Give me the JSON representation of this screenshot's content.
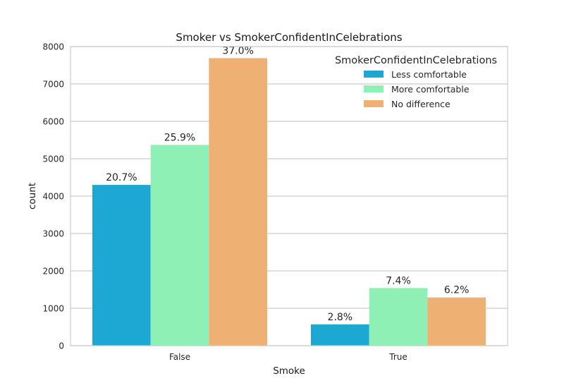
{
  "chart_data": {
    "type": "bar",
    "title": "Smoker vs SmokerConfidentInCelebrations",
    "xlabel": "Smoke",
    "ylabel": "count",
    "categories": [
      "False",
      "True"
    ],
    "ylim": [
      0,
      8000
    ],
    "yticks": [
      0,
      1000,
      2000,
      3000,
      4000,
      5000,
      6000,
      7000,
      8000
    ],
    "grid": true,
    "legend": {
      "title": "SmokerConfidentInCelebrations",
      "placement": "top-right"
    },
    "series": [
      {
        "name": "Less comfortable",
        "color": "#1da7d3",
        "values": [
          4300,
          570
        ],
        "labels": [
          "20.7%",
          "2.8%"
        ]
      },
      {
        "name": "More comfortable",
        "color": "#8ef0b4",
        "values": [
          5370,
          1540
        ],
        "labels": [
          "25.9%",
          "7.4%"
        ]
      },
      {
        "name": "No difference",
        "color": "#eeb173",
        "values": [
          7690,
          1290
        ],
        "labels": [
          "37.0%",
          "6.2%"
        ]
      }
    ]
  }
}
